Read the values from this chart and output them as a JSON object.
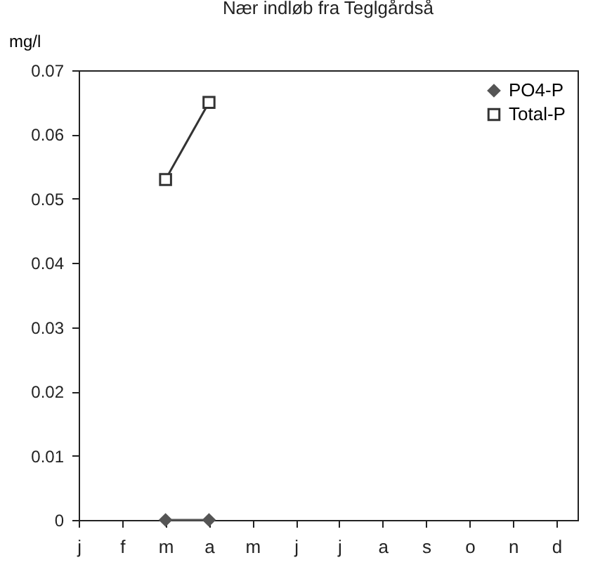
{
  "chart_data": {
    "type": "line",
    "title": "Nær indløb fra Teglgårdså",
    "ylabel": "mg/l",
    "categories": [
      "j",
      "f",
      "m",
      "a",
      "m",
      "j",
      "j",
      "a",
      "s",
      "o",
      "n",
      "d"
    ],
    "series": [
      {
        "name": "PO4-P",
        "color": "#555555",
        "marker": "diamond",
        "values": [
          null,
          null,
          0,
          0,
          null,
          null,
          null,
          null,
          null,
          null,
          null,
          null
        ]
      },
      {
        "name": "Total-P",
        "color": "#333333",
        "marker": "square",
        "values": [
          null,
          null,
          0.053,
          0.065,
          null,
          null,
          null,
          null,
          null,
          null,
          null,
          null
        ]
      }
    ],
    "ylim": [
      0,
      0.07
    ],
    "yticks": [
      0,
      0.01,
      0.02,
      0.03,
      0.04,
      0.05,
      0.06,
      0.07
    ],
    "grid": false,
    "legend": "top right",
    "line_style": "solid"
  }
}
